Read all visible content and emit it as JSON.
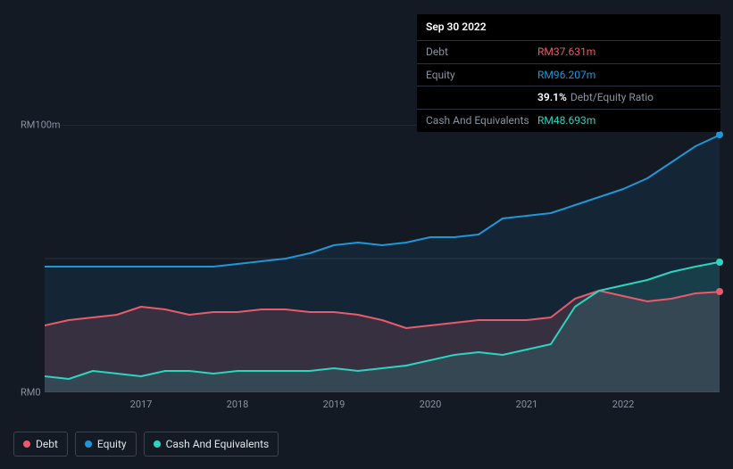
{
  "tooltip": {
    "date": "Sep 30 2022",
    "rows": [
      {
        "label": "Debt",
        "value": "RM37.631m",
        "color": "#e85b6c"
      },
      {
        "label": "Equity",
        "value": "RM96.207m",
        "color": "#2196d6"
      },
      {
        "label": "",
        "ratio_pct": "39.1%",
        "ratio_label": "Debt/Equity Ratio"
      },
      {
        "label": "Cash And Equivalents",
        "value": "RM48.693m",
        "color": "#2dd4bf"
      }
    ]
  },
  "chart": {
    "type": "area-line",
    "background_color": "#131a24",
    "plot_background": "#131a24",
    "grid_color": "#2a3340",
    "ylim": [
      0,
      100
    ],
    "y_ticks": [
      {
        "v": 100,
        "label": "RM100m"
      },
      {
        "v": 0,
        "label": "RM0"
      }
    ],
    "x_domain": [
      2016,
      2023
    ],
    "x_ticks": [
      2017,
      2018,
      2019,
      2020,
      2021,
      2022
    ],
    "series": [
      {
        "name": "Debt",
        "color": "#e85b6c",
        "fill": "rgba(232,91,108,0.18)",
        "line_width": 2,
        "end_marker": true,
        "points": [
          [
            2016.0,
            25
          ],
          [
            2016.25,
            27
          ],
          [
            2016.5,
            28
          ],
          [
            2016.75,
            29
          ],
          [
            2017.0,
            32
          ],
          [
            2017.25,
            31
          ],
          [
            2017.5,
            29
          ],
          [
            2017.75,
            30
          ],
          [
            2018.0,
            30
          ],
          [
            2018.25,
            31
          ],
          [
            2018.5,
            31
          ],
          [
            2018.75,
            30
          ],
          [
            2019.0,
            30
          ],
          [
            2019.25,
            29
          ],
          [
            2019.5,
            27
          ],
          [
            2019.75,
            24
          ],
          [
            2020.0,
            25
          ],
          [
            2020.25,
            26
          ],
          [
            2020.5,
            27
          ],
          [
            2020.75,
            27
          ],
          [
            2021.0,
            27
          ],
          [
            2021.25,
            28
          ],
          [
            2021.5,
            35
          ],
          [
            2021.75,
            38
          ],
          [
            2022.0,
            36
          ],
          [
            2022.25,
            34
          ],
          [
            2022.5,
            35
          ],
          [
            2022.75,
            37
          ],
          [
            2023.0,
            37.6
          ]
        ]
      },
      {
        "name": "Equity",
        "color": "#2196d6",
        "fill": "rgba(33,150,214,0.10)",
        "line_width": 2,
        "end_marker": true,
        "points": [
          [
            2016.0,
            47
          ],
          [
            2016.25,
            47
          ],
          [
            2016.5,
            47
          ],
          [
            2016.75,
            47
          ],
          [
            2017.0,
            47
          ],
          [
            2017.25,
            47
          ],
          [
            2017.5,
            47
          ],
          [
            2017.75,
            47
          ],
          [
            2018.0,
            48
          ],
          [
            2018.25,
            49
          ],
          [
            2018.5,
            50
          ],
          [
            2018.75,
            52
          ],
          [
            2019.0,
            55
          ],
          [
            2019.25,
            56
          ],
          [
            2019.5,
            55
          ],
          [
            2019.75,
            56
          ],
          [
            2020.0,
            58
          ],
          [
            2020.25,
            58
          ],
          [
            2020.5,
            59
          ],
          [
            2020.75,
            65
          ],
          [
            2021.0,
            66
          ],
          [
            2021.25,
            67
          ],
          [
            2021.5,
            70
          ],
          [
            2021.75,
            73
          ],
          [
            2022.0,
            76
          ],
          [
            2022.25,
            80
          ],
          [
            2022.5,
            86
          ],
          [
            2022.75,
            92
          ],
          [
            2023.0,
            96.2
          ]
        ]
      },
      {
        "name": "Cash And Equivalents",
        "color": "#2dd4bf",
        "fill": "rgba(45,212,191,0.14)",
        "line_width": 2,
        "end_marker": true,
        "points": [
          [
            2016.0,
            6
          ],
          [
            2016.25,
            5
          ],
          [
            2016.5,
            8
          ],
          [
            2016.75,
            7
          ],
          [
            2017.0,
            6
          ],
          [
            2017.25,
            8
          ],
          [
            2017.5,
            8
          ],
          [
            2017.75,
            7
          ],
          [
            2018.0,
            8
          ],
          [
            2018.25,
            8
          ],
          [
            2018.5,
            8
          ],
          [
            2018.75,
            8
          ],
          [
            2019.0,
            9
          ],
          [
            2019.25,
            8
          ],
          [
            2019.5,
            9
          ],
          [
            2019.75,
            10
          ],
          [
            2020.0,
            12
          ],
          [
            2020.25,
            14
          ],
          [
            2020.5,
            15
          ],
          [
            2020.75,
            14
          ],
          [
            2021.0,
            16
          ],
          [
            2021.25,
            18
          ],
          [
            2021.5,
            32
          ],
          [
            2021.75,
            38
          ],
          [
            2022.0,
            40
          ],
          [
            2022.25,
            42
          ],
          [
            2022.5,
            45
          ],
          [
            2022.75,
            47
          ],
          [
            2023.0,
            48.7
          ]
        ]
      }
    ]
  },
  "legend": {
    "items": [
      {
        "label": "Debt",
        "color": "#e85b6c"
      },
      {
        "label": "Equity",
        "color": "#2196d6"
      },
      {
        "label": "Cash And Equivalents",
        "color": "#2dd4bf"
      }
    ]
  }
}
